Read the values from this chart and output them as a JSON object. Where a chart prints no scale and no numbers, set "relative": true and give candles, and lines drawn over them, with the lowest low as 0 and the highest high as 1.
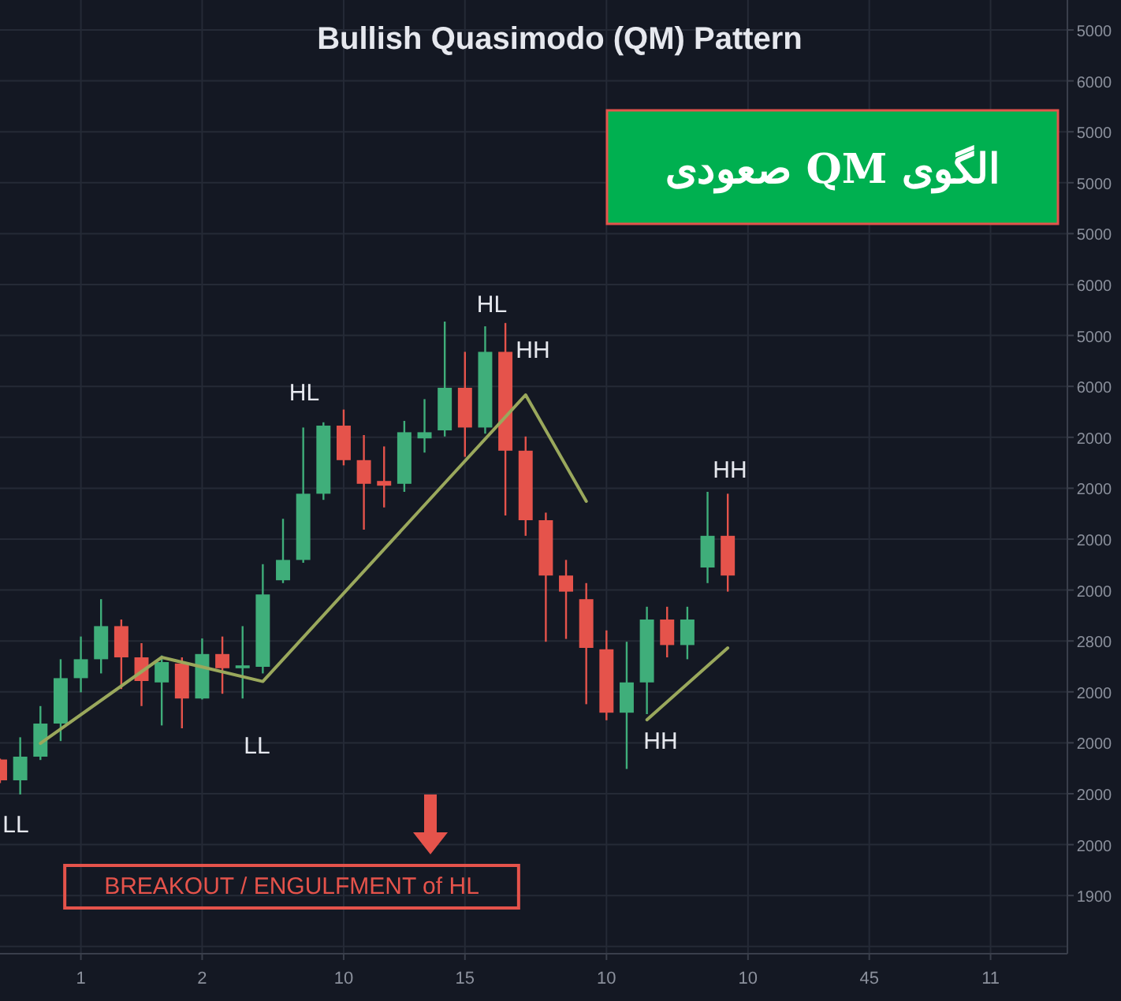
{
  "chart_data": {
    "type": "candlestick",
    "title": "Bullish Quasimodo (QM) Pattern",
    "relative": true,
    "categories": [
      null,
      null,
      null,
      null,
      "1",
      null,
      null,
      null,
      null,
      null,
      "2",
      null,
      null,
      null,
      null,
      null,
      null,
      "10",
      null,
      null,
      null,
      null,
      null,
      "15",
      null,
      null,
      null,
      null,
      null,
      null,
      "10",
      null,
      null,
      null,
      null,
      null,
      null,
      "10",
      null,
      null,
      null,
      null,
      null,
      "45",
      null,
      null,
      null,
      null,
      null,
      "11",
      null,
      null,
      null
    ],
    "ohlc": [
      [
        0.074,
        0.076,
        0.024,
        0.03
      ],
      [
        0.03,
        0.121,
        0,
        0.08
      ],
      [
        0.08,
        0.187,
        0.073,
        0.15
      ],
      [
        0.15,
        0.286,
        0.113,
        0.246
      ],
      [
        0.246,
        0.334,
        0.216,
        0.286
      ],
      [
        0.286,
        0.413,
        0.256,
        0.356
      ],
      [
        0.356,
        0.37,
        0.223,
        0.29
      ],
      [
        0.29,
        0.32,
        0.187,
        0.24
      ],
      [
        0.237,
        0.294,
        0.146,
        0.28
      ],
      [
        0.277,
        0.29,
        0.14,
        0.203
      ],
      [
        0.203,
        0.33,
        0.201,
        0.297
      ],
      [
        0.297,
        0.334,
        0.213,
        0.267
      ],
      [
        0.267,
        0.356,
        0.203,
        0.273
      ],
      [
        0.27,
        0.487,
        0.256,
        0.423
      ],
      [
        0.453,
        0.583,
        0.447,
        0.496
      ],
      [
        0.496,
        0.776,
        0.49,
        0.636
      ],
      [
        0.636,
        0.787,
        0.623,
        0.78
      ],
      [
        0.78,
        0.814,
        0.696,
        0.707
      ],
      [
        0.707,
        0.76,
        0.56,
        0.657
      ],
      [
        0.663,
        0.736,
        0.607,
        0.653
      ],
      [
        0.657,
        0.79,
        0.64,
        0.766
      ],
      [
        0.753,
        0.836,
        0.723,
        0.766
      ],
      [
        0.77,
        1,
        0.757,
        0.86
      ],
      [
        0.86,
        0.936,
        0.714,
        0.776
      ],
      [
        0.776,
        0.99,
        0.763,
        0.936
      ],
      [
        0.936,
        0.997,
        0.59,
        0.727
      ],
      [
        0.727,
        0.757,
        0.547,
        0.58
      ],
      [
        0.58,
        0.596,
        0.323,
        0.463
      ],
      [
        0.463,
        0.496,
        0.329,
        0.429
      ],
      [
        0.413,
        0.447,
        0.191,
        0.31
      ],
      [
        0.307,
        0.347,
        0.157,
        0.173
      ],
      [
        0.173,
        0.323,
        0.054,
        0.237
      ],
      [
        0.237,
        0.397,
        0.17,
        0.37
      ],
      [
        0.37,
        0.397,
        0.29,
        0.316
      ],
      [
        0.316,
        0.397,
        0.286,
        0.37
      ],
      [
        0.48,
        0.64,
        0.447,
        0.547
      ],
      [
        0.547,
        0.636,
        0.429,
        0.463
      ],
      null,
      null,
      null,
      null,
      null,
      null,
      null,
      null,
      null,
      null,
      null,
      null,
      null,
      null,
      null,
      null
    ],
    "colors": [
      "#e5534b",
      "#3fae7a",
      "#3fae7a",
      "#3fae7a",
      "#3fae7a",
      "#3fae7a",
      "#e5534b",
      "#e5534b",
      "#3fae7a",
      "#e5534b",
      "#3fae7a",
      "#e5534b",
      "#3fae7a",
      "#3fae7a",
      "#3fae7a",
      "#3fae7a",
      "#3fae7a",
      "#e5534b",
      "#e5534b",
      "#e5534b",
      "#3fae7a",
      "#3fae7a",
      "#3fae7a",
      "#e5534b",
      "#3fae7a",
      "#e5534b",
      "#e5534b",
      "#e5534b",
      "#e5534b",
      "#e5534b",
      "#e5534b",
      "#3fae7a",
      "#3fae7a",
      "#e5534b",
      "#3fae7a",
      "#3fae7a",
      "#e5534b",
      null,
      null,
      null,
      null,
      null,
      null,
      null,
      null,
      null,
      null,
      null,
      null,
      null,
      null,
      null,
      null
    ],
    "series": [
      {
        "type": "line",
        "color": "#9aa85c",
        "values": [
          null,
          null,
          0.108,
          null,
          null,
          null,
          null,
          null,
          0.29,
          null,
          null,
          null,
          null,
          0.239,
          null,
          null,
          null,
          null,
          null,
          null,
          null,
          null,
          null,
          null,
          null,
          null,
          0.845,
          null,
          null,
          0.62,
          null,
          null,
          null,
          null,
          null,
          null,
          null,
          null,
          null,
          null,
          null,
          null,
          null,
          null,
          null,
          null,
          null,
          null,
          null,
          null,
          null,
          null,
          null
        ]
      },
      {
        "type": "line",
        "color": "#9aa85c",
        "values": [
          null,
          null,
          null,
          null,
          null,
          null,
          null,
          null,
          null,
          null,
          null,
          null,
          null,
          null,
          null,
          null,
          null,
          null,
          null,
          null,
          null,
          null,
          null,
          null,
          null,
          null,
          null,
          null,
          null,
          null,
          null,
          null,
          0.158,
          null,
          null,
          null,
          0.31,
          null,
          null,
          null,
          null,
          null,
          null,
          null,
          null,
          null,
          null,
          null,
          null,
          null,
          null,
          null,
          null
        ]
      }
    ],
    "annotations": [
      "BREAKOUT / ENGULFMENT of HL",
      "الگوی QM صعودی",
      "LL",
      "LL",
      "HL",
      "HL",
      "HH",
      "HH",
      "HH",
      "5000",
      "6000",
      "5000",
      "5000",
      "5000",
      "6000",
      "5000",
      "6000",
      "2000",
      "2000",
      "2000",
      "2000",
      "2800",
      "2000",
      "2000",
      "2000",
      "2000",
      "1900"
    ],
    "grid": true
  }
}
